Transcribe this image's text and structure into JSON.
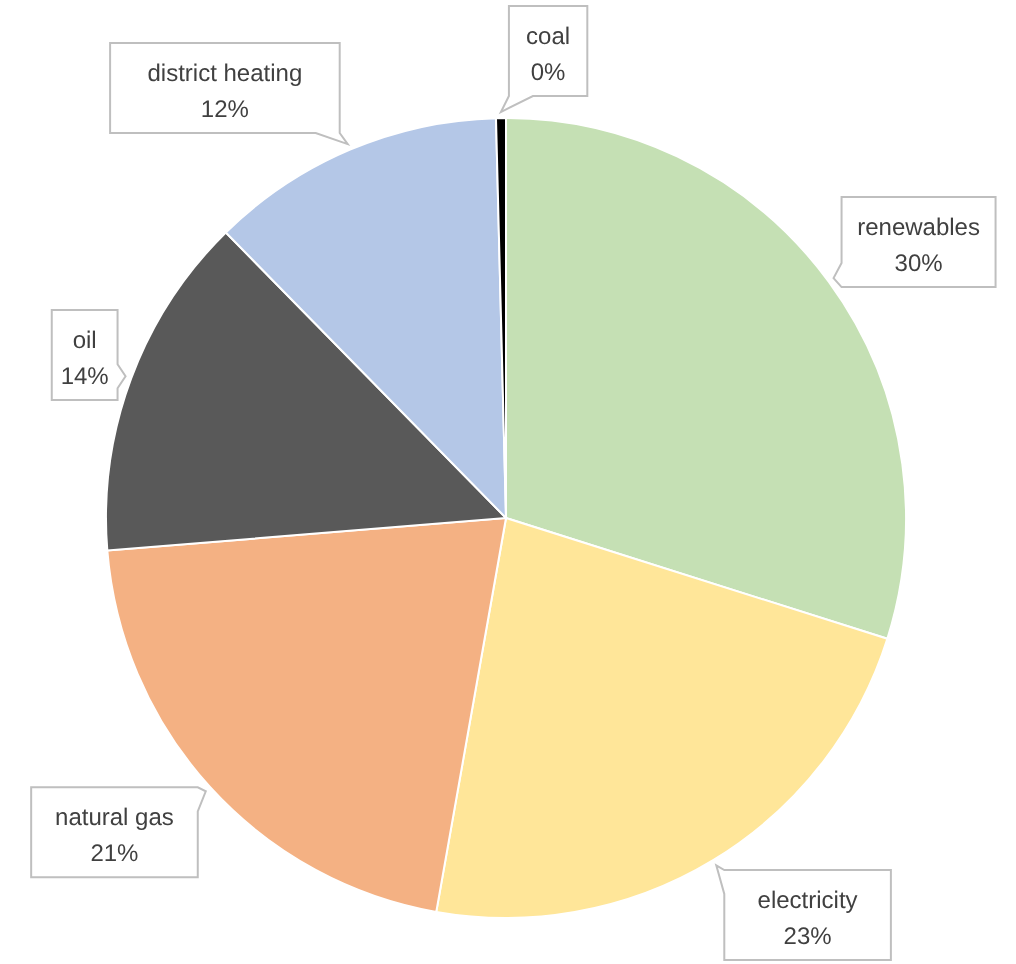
{
  "chart_data": {
    "type": "pie",
    "categories": [
      "renewables",
      "electricity",
      "natural gas",
      "oil",
      "district heating",
      "coal"
    ],
    "values": [
      30,
      23,
      21,
      14,
      12,
      0.4
    ],
    "colors": [
      "#c5e0b4",
      "#ffe699",
      "#f4b183",
      "#595959",
      "#b4c7e7",
      "#000000"
    ],
    "value_labels": [
      "30%",
      "23%",
      "21%",
      "14%",
      "12%",
      "0%"
    ]
  }
}
